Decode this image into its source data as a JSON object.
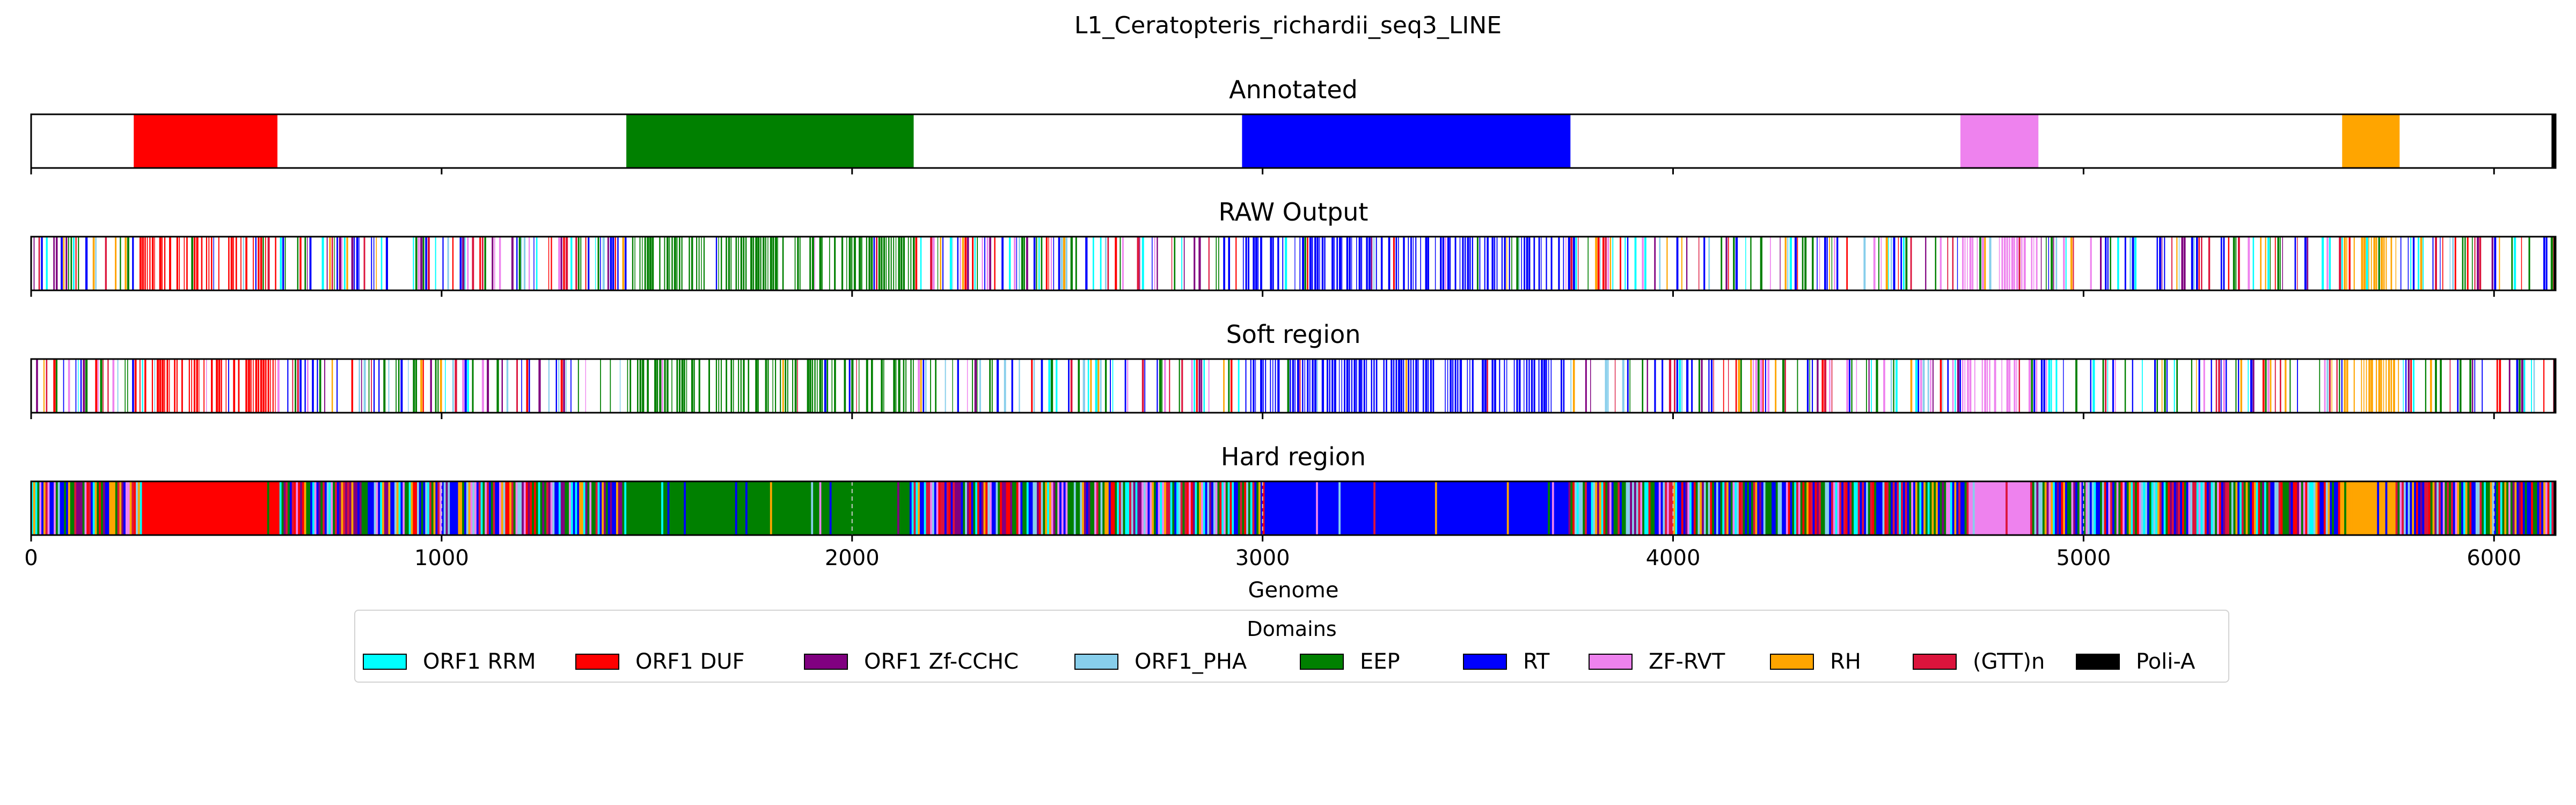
{
  "chart_data": {
    "type": "bar",
    "title": "L1_Ceratopteris_richardii_seq3_LINE",
    "xlabel": "Genome",
    "xlim": [
      0,
      6150
    ],
    "x_ticks": [
      0,
      1000,
      2000,
      3000,
      4000,
      5000,
      6000
    ],
    "x_tick_labels": [
      "0",
      "1000",
      "2000",
      "3000",
      "4000",
      "5000",
      "6000"
    ],
    "legend": {
      "title": "Domains",
      "placement": "bottom-center",
      "entries": [
        {
          "name": "ORF1 RRM",
          "color": "#00ffff"
        },
        {
          "name": "ORF1 DUF",
          "color": "#ff0000"
        },
        {
          "name": "ORF1 Zf-CCHC",
          "color": "#800080"
        },
        {
          "name": "ORF1_PHA",
          "color": "#87ceeb"
        },
        {
          "name": "EEP",
          "color": "#008000"
        },
        {
          "name": "RT",
          "color": "#0000ff"
        },
        {
          "name": "ZF-RVT",
          "color": "#ee82ee"
        },
        {
          "name": "RH",
          "color": "#ffa500"
        },
        {
          "name": "(GTT)n",
          "color": "#dc143c"
        },
        {
          "name": "Poli-A",
          "color": "#000000"
        }
      ]
    },
    "panels": [
      {
        "title": "Annotated",
        "segments": [
          {
            "domain": "ORF1 DUF",
            "start": 250,
            "end": 600
          },
          {
            "domain": "EEP",
            "start": 1450,
            "end": 2150
          },
          {
            "domain": "RT",
            "start": 2950,
            "end": 3750
          },
          {
            "domain": "ZF-RVT",
            "start": 4700,
            "end": 4890
          },
          {
            "domain": "RH",
            "start": 5630,
            "end": 5770
          },
          {
            "domain": "Poli-A",
            "start": 6140,
            "end": 6150
          }
        ]
      },
      {
        "title": "RAW Output",
        "dominant_regions": [
          {
            "domain": "ORF1 DUF",
            "start": 250,
            "end": 600
          },
          {
            "domain": "EEP",
            "start": 1450,
            "end": 2150
          },
          {
            "domain": "RT",
            "start": 2950,
            "end": 3750
          },
          {
            "domain": "ZF-RVT",
            "start": 4700,
            "end": 4890
          },
          {
            "domain": "RH",
            "start": 5630,
            "end": 5770
          }
        ],
        "pattern": "sparse"
      },
      {
        "title": "Soft region",
        "dominant_regions": [
          {
            "domain": "ORF1 DUF",
            "start": 250,
            "end": 600
          },
          {
            "domain": "EEP",
            "start": 1450,
            "end": 2150
          },
          {
            "domain": "RT",
            "start": 2950,
            "end": 3750
          },
          {
            "domain": "ZF-RVT",
            "start": 4700,
            "end": 4890
          },
          {
            "domain": "RH",
            "start": 5630,
            "end": 5770
          }
        ],
        "pattern": "sparse"
      },
      {
        "title": "Hard region",
        "dominant_regions": [
          {
            "domain": "ORF1 DUF",
            "start": 270,
            "end": 600
          },
          {
            "domain": "EEP",
            "start": 1450,
            "end": 2140
          },
          {
            "domain": "RT",
            "start": 3000,
            "end": 3730
          },
          {
            "domain": "ZF-RVT",
            "start": 4720,
            "end": 4870
          },
          {
            "domain": "RH",
            "start": 5630,
            "end": 5760
          }
        ],
        "pattern": "dense"
      }
    ],
    "grid": "dashed x-grid on Hard region panel"
  }
}
